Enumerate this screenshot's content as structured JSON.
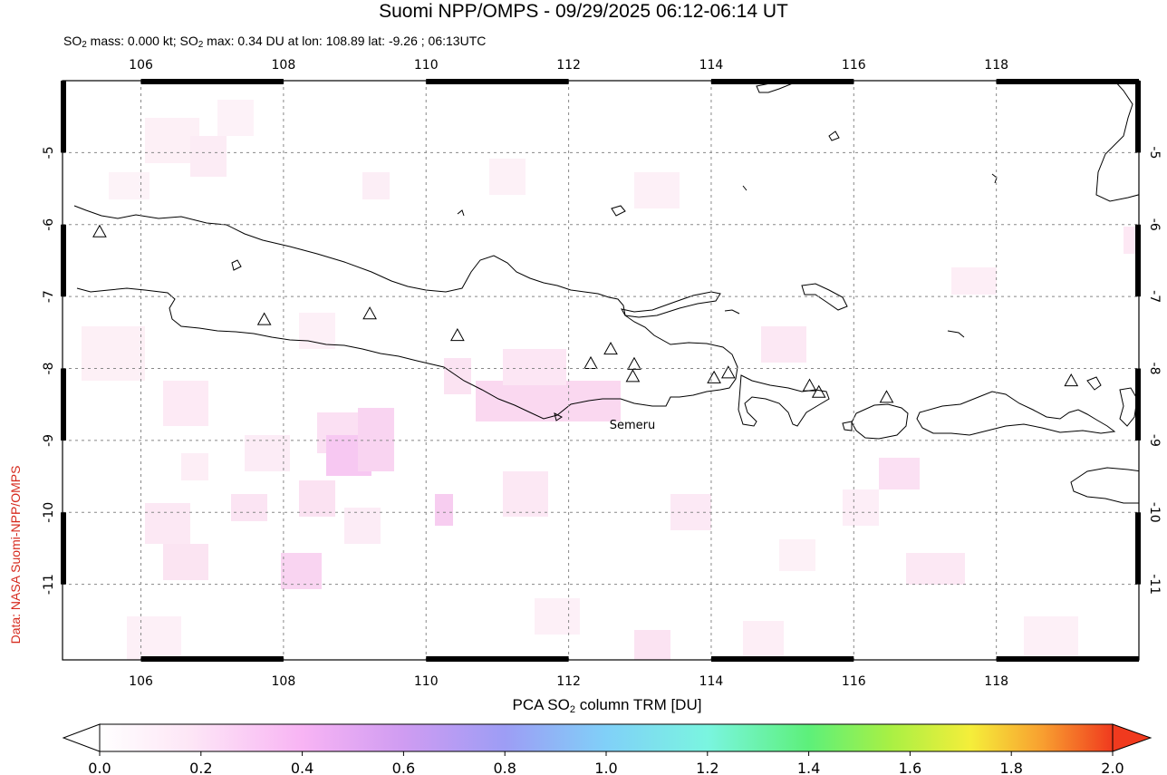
{
  "title": "Suomi NPP/OMPS - 09/29/2025 06:12-06:14 UT",
  "subtitle": {
    "part1": "SO",
    "sub1": "2",
    "part2": " mass: 0.000 kt; SO",
    "sub2": "2",
    "part3": " max: 0.34 DU at lon: 108.89 lat: -9.26 ; 06:13UTC"
  },
  "credit": "Data: NASA Suomi-NPP/OMPS",
  "map": {
    "lon_range": [
      104.9,
      120.0
    ],
    "lat_range": [
      -12.05,
      -4.0
    ],
    "lon_ticks": [
      "106",
      "108",
      "110",
      "112",
      "114",
      "116",
      "118"
    ],
    "lon_values": [
      106,
      108,
      110,
      112,
      114,
      116,
      118
    ],
    "lat_ticks": [
      "-5",
      "-6",
      "-7",
      "-8",
      "-9",
      "-10",
      "-11"
    ],
    "lat_values": [
      -5,
      -6,
      -7,
      -8,
      -9,
      -10,
      -11
    ],
    "volcano_label": "Semeru",
    "volcanoes": [
      {
        "lon": 105.42,
        "lat": -6.1
      },
      {
        "lon": 107.73,
        "lat": -7.32
      },
      {
        "lon": 109.21,
        "lat": -7.24
      },
      {
        "lon": 110.44,
        "lat": -7.54
      },
      {
        "lon": 112.31,
        "lat": -7.93
      },
      {
        "lon": 112.59,
        "lat": -7.73
      },
      {
        "lon": 112.92,
        "lat": -7.94
      },
      {
        "lon": 112.9,
        "lat": -8.11
      },
      {
        "lon": 114.04,
        "lat": -8.13
      },
      {
        "lon": 114.24,
        "lat": -8.06
      },
      {
        "lon": 115.38,
        "lat": -8.24
      },
      {
        "lon": 115.51,
        "lat": -8.33
      },
      {
        "lon": 116.46,
        "lat": -8.4
      },
      {
        "lon": 119.05,
        "lat": -8.17
      }
    ]
  },
  "colorbar": {
    "title_part1": "PCA SO",
    "title_sub": "2",
    "title_part2": " column TRM [DU]",
    "ticks": [
      "0.0",
      "0.2",
      "0.4",
      "0.6",
      "0.8",
      "1.0",
      "1.2",
      "1.4",
      "1.6",
      "1.8",
      "2.0"
    ],
    "colors": [
      "#ffffff",
      "#fde6f6",
      "#f8b4f4",
      "#cf9cf2",
      "#9d9df5",
      "#80d0f8",
      "#7af5e0",
      "#5df07a",
      "#a8f044",
      "#f5ee3a",
      "#f8a030",
      "#f03a1e"
    ]
  }
}
